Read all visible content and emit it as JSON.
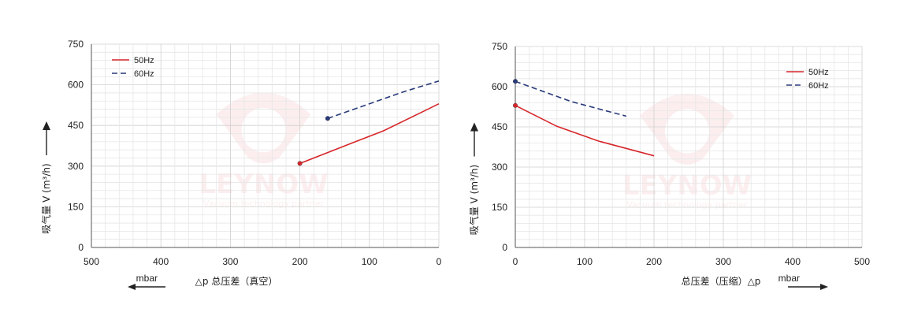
{
  "chart_data": [
    {
      "type": "line",
      "title": "",
      "xlabel": "△p 总压差（真空）",
      "x_unit": "mbar",
      "ylabel": "吸气量 V (m³/h)",
      "xlim": [
        500,
        0
      ],
      "ylim": [
        0,
        750
      ],
      "x_ticks": [
        "500",
        "400",
        "300",
        "200",
        "100",
        "0"
      ],
      "y_ticks": [
        "0",
        "150",
        "300",
        "450",
        "600",
        "750"
      ],
      "grid": true,
      "legend_position": "top-left",
      "series": [
        {
          "name": "50Hz",
          "color": "#d7262b",
          "style": "solid",
          "x": [
            200,
            120,
            80,
            20,
            0
          ],
          "y": [
            310,
            390,
            430,
            505,
            530
          ]
        },
        {
          "name": "60Hz",
          "color": "#283a7a",
          "style": "dashed",
          "x": [
            160,
            100,
            50,
            0
          ],
          "y": [
            476,
            530,
            575,
            614
          ]
        }
      ],
      "watermark": {
        "brand": "LEYNOW",
        "sub": "Vacuum technology partner"
      }
    },
    {
      "type": "line",
      "title": "",
      "xlabel": "总压差（压缩）△p",
      "x_unit": "mbar",
      "ylabel": "吸气量 V (m³/h)",
      "xlim": [
        0,
        500
      ],
      "ylim": [
        0,
        750
      ],
      "x_ticks": [
        "0",
        "100",
        "200",
        "300",
        "400",
        "500"
      ],
      "y_ticks": [
        "0",
        "150",
        "300",
        "450",
        "600",
        "750"
      ],
      "grid": true,
      "legend_position": "top-right",
      "series": [
        {
          "name": "50Hz",
          "color": "#d7262b",
          "style": "solid",
          "x": [
            0,
            60,
            120,
            200
          ],
          "y": [
            530,
            452,
            397,
            342
          ]
        },
        {
          "name": "60Hz",
          "color": "#283a7a",
          "style": "dashed",
          "x": [
            0,
            80,
            160
          ],
          "y": [
            620,
            545,
            490
          ]
        }
      ],
      "watermark": {
        "brand": "LEYNOW",
        "sub": "Vacuum technology partner"
      }
    }
  ]
}
